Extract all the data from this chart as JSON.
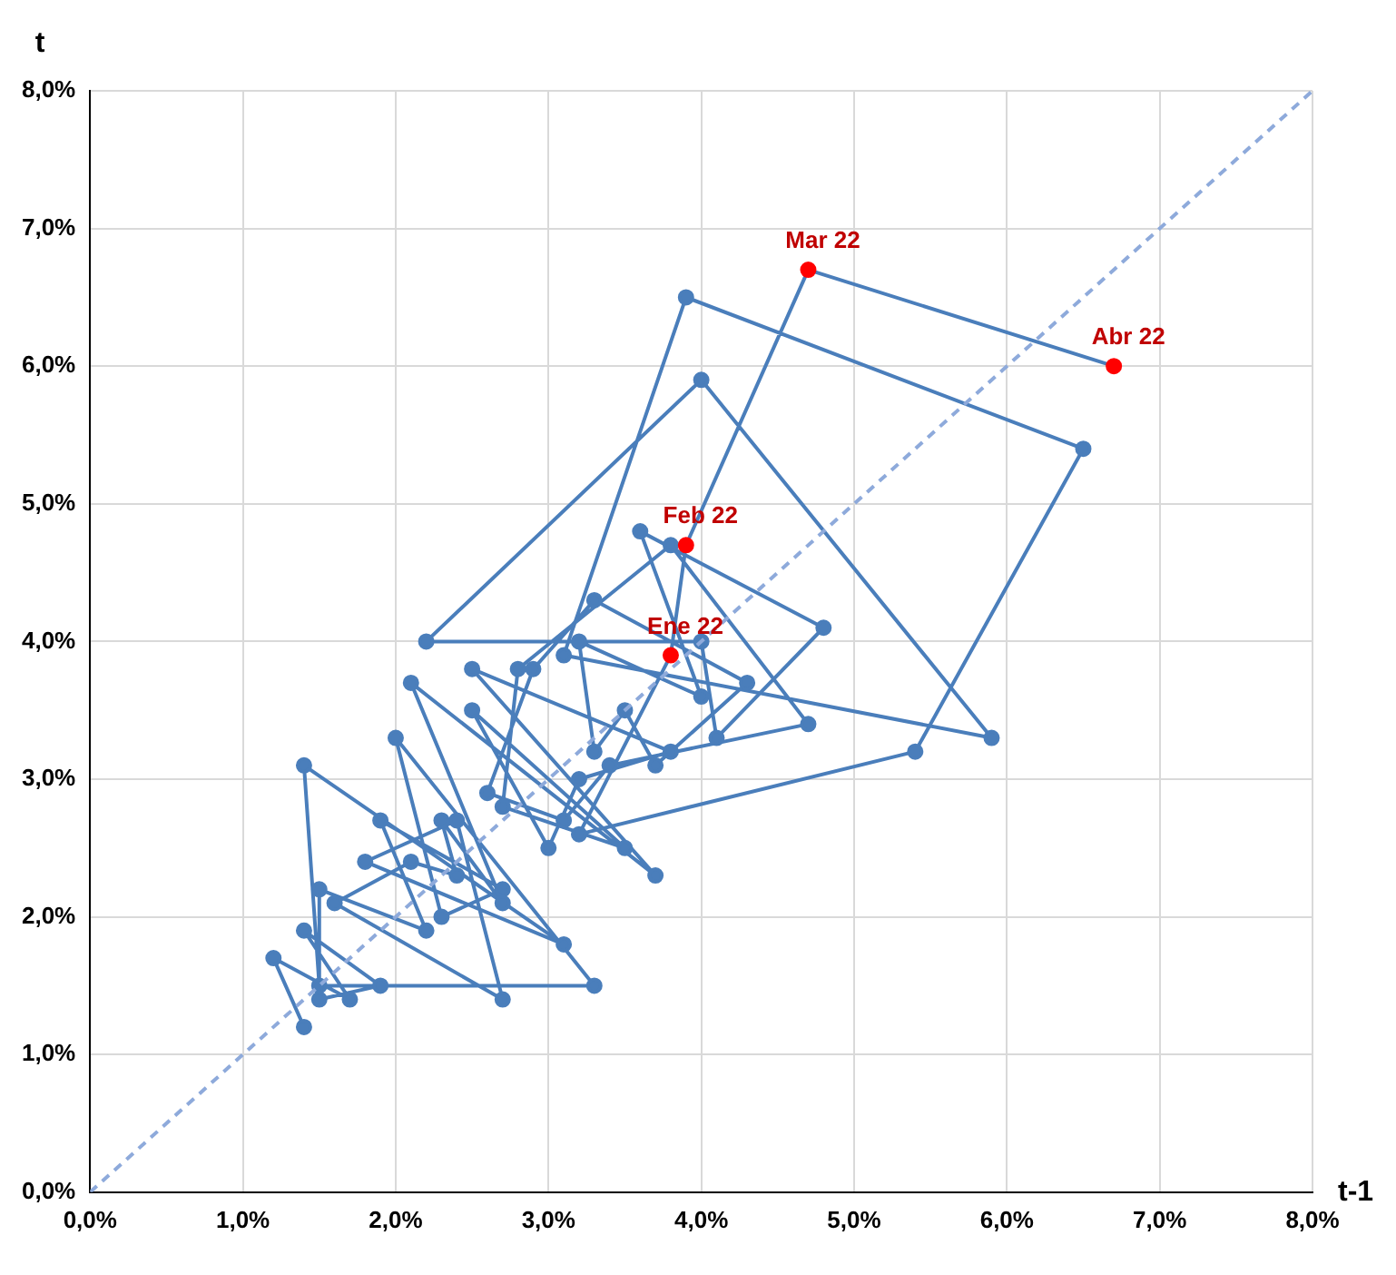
{
  "chart_data": {
    "type": "line",
    "xlabel": "t-1",
    "ylabel": "t",
    "xlim": [
      0,
      8
    ],
    "ylim": [
      0,
      8
    ],
    "xticks": [
      {
        "value": 0,
        "label": "0,0%"
      },
      {
        "value": 1,
        "label": "1,0%"
      },
      {
        "value": 2,
        "label": "2,0%"
      },
      {
        "value": 3,
        "label": "3,0%"
      },
      {
        "value": 4,
        "label": "4,0%"
      },
      {
        "value": 5,
        "label": "5,0%"
      },
      {
        "value": 6,
        "label": "6,0%"
      },
      {
        "value": 7,
        "label": "7,0%"
      },
      {
        "value": 8,
        "label": "8,0%"
      }
    ],
    "yticks": [
      {
        "value": 0,
        "label": "0,0%"
      },
      {
        "value": 1,
        "label": "1,0%"
      },
      {
        "value": 2,
        "label": "2,0%"
      },
      {
        "value": 3,
        "label": "3,0%"
      },
      {
        "value": 4,
        "label": "4,0%"
      },
      {
        "value": 5,
        "label": "5,0%"
      },
      {
        "value": 6,
        "label": "6,0%"
      },
      {
        "value": 7,
        "label": "7,0%"
      },
      {
        "value": 8,
        "label": "8,0%"
      }
    ],
    "grid": true,
    "marker": "circle",
    "series": [
      {
        "type": "line",
        "color": "#8eaadb",
        "line_style": "dashed",
        "marker": "none",
        "x": [
          0,
          8
        ],
        "values": [
          0,
          8
        ]
      },
      {
        "type": "line",
        "color": "#4a7ebb",
        "line_style": "solid",
        "x": [
          1.4,
          1.2,
          1.7,
          1.4,
          1.9,
          1.5,
          1.5,
          2.2,
          1.9,
          2.7,
          2.3,
          2.0,
          3.3,
          1.5,
          1.4,
          3.1,
          1.8,
          2.4,
          2.7,
          1.6,
          2.1,
          2.4,
          2.3,
          2.7,
          2.1,
          3.7,
          2.5,
          3.8,
          3.2,
          3.0,
          2.5,
          3.5,
          2.7,
          2.8,
          3.8,
          4.7,
          3.4,
          3.1,
          2.6,
          2.9,
          3.3,
          4.3,
          3.7,
          3.5,
          3.3,
          3.2,
          4.0,
          3.6,
          4.8,
          4.1,
          4.0,
          2.2,
          4.0,
          5.9,
          3.1,
          3.9,
          6.5,
          5.4,
          3.2,
          3.8,
          3.9,
          4.7,
          6.7
        ],
        "values": [
          1.2,
          1.7,
          1.4,
          1.9,
          1.5,
          1.4,
          2.2,
          1.9,
          2.7,
          2.2,
          2.0,
          3.3,
          1.5,
          1.5,
          3.1,
          1.8,
          2.4,
          2.7,
          1.4,
          2.1,
          2.4,
          2.3,
          2.7,
          2.1,
          3.7,
          2.3,
          3.8,
          3.2,
          3.0,
          2.5,
          3.5,
          2.5,
          2.8,
          3.8,
          4.7,
          3.4,
          3.1,
          2.7,
          2.9,
          3.8,
          4.3,
          3.7,
          3.1,
          3.5,
          3.2,
          4.0,
          3.6,
          4.8,
          4.1,
          3.3,
          4.0,
          4.0,
          5.9,
          3.3,
          3.9,
          6.5,
          5.4,
          3.2,
          2.6,
          3.9,
          4.7,
          6.7,
          6.0
        ],
        "colors": [
          "#4a7ebb",
          "#4a7ebb",
          "#4a7ebb",
          "#4a7ebb",
          "#4a7ebb",
          "#4a7ebb",
          "#4a7ebb",
          "#4a7ebb",
          "#4a7ebb",
          "#4a7ebb",
          "#4a7ebb",
          "#4a7ebb",
          "#4a7ebb",
          "#4a7ebb",
          "#4a7ebb",
          "#4a7ebb",
          "#4a7ebb",
          "#4a7ebb",
          "#4a7ebb",
          "#4a7ebb",
          "#4a7ebb",
          "#4a7ebb",
          "#4a7ebb",
          "#4a7ebb",
          "#4a7ebb",
          "#4a7ebb",
          "#4a7ebb",
          "#4a7ebb",
          "#4a7ebb",
          "#4a7ebb",
          "#4a7ebb",
          "#4a7ebb",
          "#4a7ebb",
          "#4a7ebb",
          "#4a7ebb",
          "#4a7ebb",
          "#4a7ebb",
          "#4a7ebb",
          "#4a7ebb",
          "#4a7ebb",
          "#4a7ebb",
          "#4a7ebb",
          "#4a7ebb",
          "#4a7ebb",
          "#4a7ebb",
          "#4a7ebb",
          "#4a7ebb",
          "#4a7ebb",
          "#4a7ebb",
          "#4a7ebb",
          "#4a7ebb",
          "#4a7ebb",
          "#4a7ebb",
          "#4a7ebb",
          "#4a7ebb",
          "#4a7ebb",
          "#4a7ebb",
          "#4a7ebb",
          "#4a7ebb",
          "#ff0000",
          "#ff0000",
          "#ff0000",
          "#ff0000"
        ]
      }
    ],
    "annotations": [
      {
        "text": "Ene 22",
        "x": 3.8,
        "y": 3.9
      },
      {
        "text": "Feb 22",
        "x": 3.9,
        "y": 4.7
      },
      {
        "text": "Mar 22",
        "x": 4.7,
        "y": 6.7
      },
      {
        "text": "Abr 22",
        "x": 6.7,
        "y": 6.0
      }
    ]
  }
}
